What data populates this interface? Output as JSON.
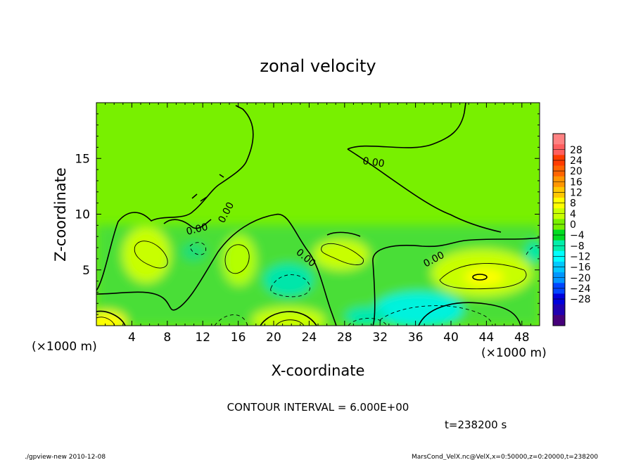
{
  "chart_data": {
    "type": "heatmap",
    "title": "zonal velocity",
    "xlabel": "X-coordinate",
    "ylabel": "Z-coordinate",
    "x_unit": "(×1000 m)",
    "z_unit": "(×1000 m)",
    "xlim": [
      0,
      50
    ],
    "ylim": [
      0,
      20
    ],
    "x_ticks": [
      "4",
      "8",
      "12",
      "16",
      "20",
      "24",
      "28",
      "32",
      "36",
      "40",
      "44",
      "48"
    ],
    "y_ticks": [
      "5",
      "10",
      "15"
    ],
    "colorbar_ticks": [
      "28",
      "24",
      "20",
      "16",
      "12",
      "8",
      "4",
      "0",
      "−4",
      "−8",
      "−12",
      "−16",
      "−20",
      "−24",
      "−28"
    ],
    "colorbar_colors": [
      "#ff8282",
      "#ff5f5f",
      "#ff3c00",
      "#ff6400",
      "#ff9600",
      "#ffc800",
      "#ffff00",
      "#c8ff00",
      "#78f000",
      "#00dd22",
      "#00eeaa",
      "#00ffff",
      "#00c8ff",
      "#0096ff",
      "#0046ff",
      "#0000dc",
      "#2000b0",
      "#46007a"
    ],
    "contour_interval": "CONTOUR INTERVAL = 6.000E+00",
    "contour_labels": [
      "0.00",
      "0.00",
      "0.00",
      "0.00",
      "0.00"
    ],
    "time": "t=238200 s",
    "footer_left": "./gpview-new  2010-12-08",
    "footer_right": "MarsCond_VelX.nc@VelX,x=0:50000,z=0:20000,t=238200"
  }
}
